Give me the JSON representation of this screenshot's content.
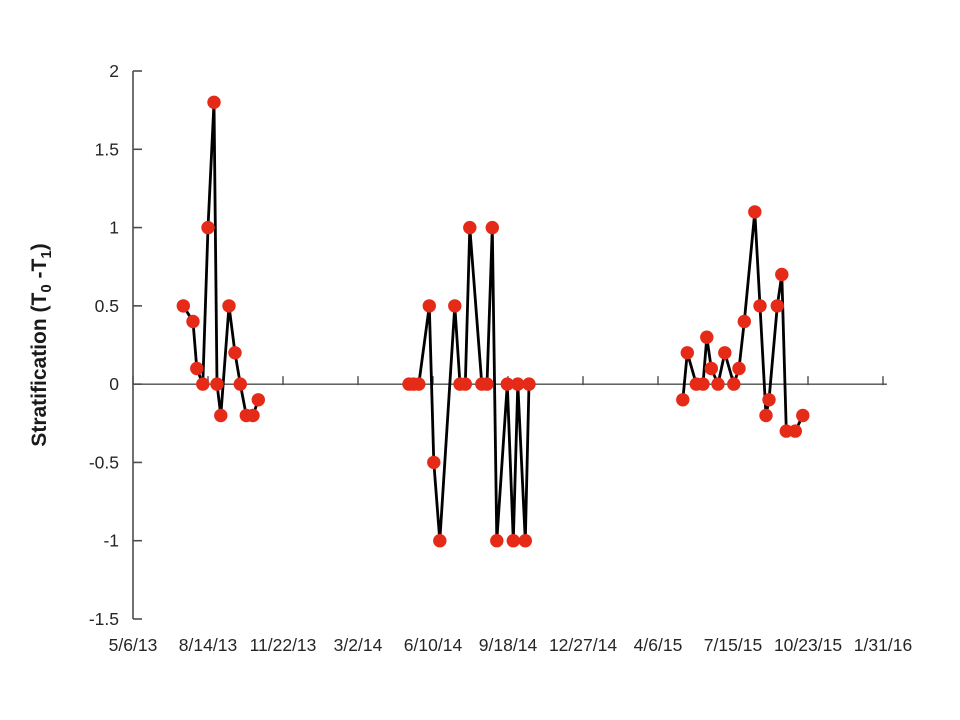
{
  "page": {
    "background": "#ffffff"
  },
  "chart_data": {
    "type": "line",
    "title": "",
    "xlabel": "",
    "ylabel": "Stratification (T0 -T1)",
    "ylabel_parts": [
      {
        "text": "Stratification (T",
        "sub": false
      },
      {
        "text": "0",
        "sub": true
      },
      {
        "text": " -T",
        "sub": false
      },
      {
        "text": "1",
        "sub": true
      },
      {
        "text": ")",
        "sub": false
      }
    ],
    "grid": false,
    "legend": false,
    "x_axis": {
      "unit": "days since 5/6/2013",
      "min": 0,
      "max": 1000,
      "tick_days": [
        0,
        100,
        200,
        300,
        400,
        500,
        600,
        700,
        800,
        900,
        1000
      ],
      "tick_labels": [
        "5/6/13",
        "8/14/13",
        "11/22/13",
        "3/2/14",
        "6/10/14",
        "9/18/14",
        "12/27/14",
        "4/6/15",
        "7/15/15",
        "10/23/15",
        "1/31/16"
      ]
    },
    "y_axis": {
      "min": -1.5,
      "max": 2,
      "ticks": [
        2,
        1.5,
        1,
        0.5,
        0,
        -0.5,
        -1,
        -1.5
      ],
      "tick_labels": [
        "2",
        "1.5",
        "1",
        "0.5",
        "0",
        "-0.5",
        "-1",
        "-1.5"
      ]
    },
    "axis_color": "#4d4d4d",
    "text_color": "#262626",
    "series": [
      {
        "name": "Stratification (T0 - T1)",
        "line_color": "#000000",
        "marker_color": "#e52a18",
        "segments": [
          [
            [
              67,
              0.5
            ],
            [
              80,
              0.4
            ],
            [
              85,
              0.1
            ],
            [
              93,
              0
            ],
            [
              100,
              1.0
            ],
            [
              108,
              1.8
            ],
            [
              112,
              0
            ],
            [
              117,
              -0.2
            ],
            [
              128,
              0.5
            ],
            [
              136,
              0.2
            ],
            [
              143,
              0
            ],
            [
              151,
              -0.2
            ],
            [
              160,
              -0.2
            ],
            [
              167,
              -0.1
            ]
          ],
          [
            [
              368,
              0
            ],
            [
              374,
              0
            ],
            [
              381,
              0
            ],
            [
              395,
              0.5
            ],
            [
              401,
              -0.5
            ],
            [
              409,
              -1.0
            ],
            [
              429,
              0.5
            ],
            [
              436,
              0
            ],
            [
              443,
              0
            ],
            [
              449,
              1.0
            ],
            [
              465,
              0
            ],
            [
              472,
              0
            ],
            [
              479,
              1.0
            ],
            [
              485,
              -1.0
            ],
            [
              499,
              0
            ],
            [
              507,
              -1.0
            ],
            [
              513,
              0
            ],
            [
              523,
              -1.0
            ],
            [
              528,
              0
            ]
          ],
          [
            [
              733,
              -0.1
            ],
            [
              739,
              0.2
            ],
            [
              751,
              0
            ],
            [
              760,
              0
            ],
            [
              765,
              0.3
            ],
            [
              771,
              0.1
            ],
            [
              780,
              0
            ],
            [
              789,
              0.2
            ],
            [
              801,
              0
            ],
            [
              808,
              0.1
            ],
            [
              815,
              0.4
            ],
            [
              829,
              1.1
            ],
            [
              836,
              0.5
            ],
            [
              844,
              -0.2
            ],
            [
              848,
              -0.1
            ],
            [
              859,
              0.5
            ],
            [
              865,
              0.7
            ],
            [
              871,
              -0.3
            ],
            [
              883,
              -0.3
            ],
            [
              893,
              -0.2
            ]
          ]
        ]
      }
    ]
  }
}
